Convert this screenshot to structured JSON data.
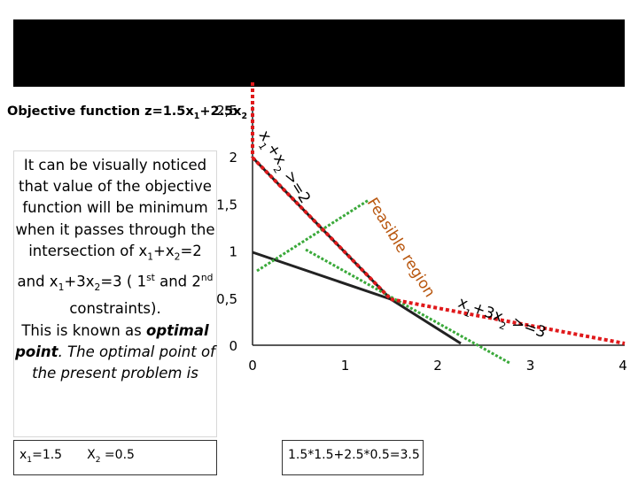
{
  "objective": {
    "parts": [
      "Objective function z=1.5x",
      "1",
      "+2.5x",
      "2"
    ]
  },
  "explanation": {
    "paragraph1": [
      "It can be visually noticed that value of the objective function will be minimum when it passes through the intersection of x",
      "1",
      "+x",
      "2",
      "=2 and x",
      "1",
      "+3x",
      "2",
      "=3 ( 1",
      "st",
      " and 2",
      "nd",
      " constraints)."
    ],
    "paragraph2": [
      "This is known as ",
      "optimal",
      " ",
      "point",
      ". The optimal point of the present problem is"
    ]
  },
  "axes": {
    "y_labels": [
      "0",
      "0,5",
      "1",
      "1,5",
      "2",
      "2,5"
    ],
    "x_labels": [
      "0",
      "1",
      "2",
      "3",
      "4"
    ]
  },
  "annotations": {
    "constraint1": [
      "x",
      "1",
      "+x",
      "2",
      " >=2"
    ],
    "feasible": "Feasible region",
    "constraint2": [
      "x",
      "1",
      "+3x",
      "2",
      " >=3"
    ]
  },
  "footer": {
    "x1": [
      "x",
      "1",
      "=1.5"
    ],
    "x2": [
      "X",
      "2",
      " =0.5"
    ],
    "value": "1.5*1.5+2.5*0.5=3.5"
  }
}
